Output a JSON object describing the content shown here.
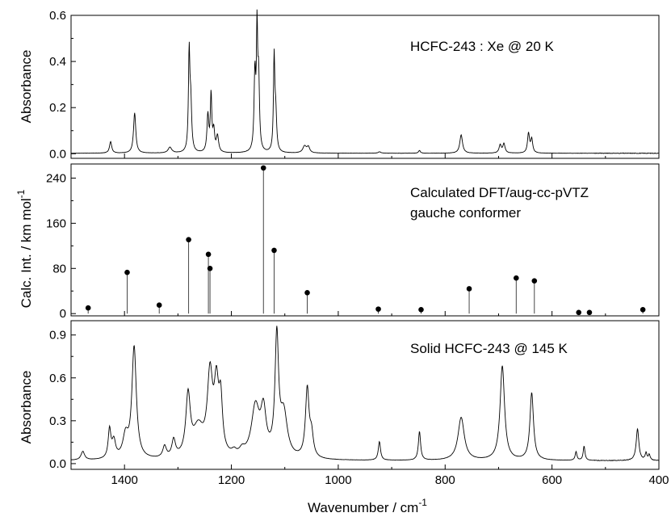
{
  "chart_data": [
    {
      "type": "line",
      "panel": "top",
      "annotation": "HCFC-243 : Xe  @  20 K",
      "ylabel": "Absorbance",
      "ylim": [
        -0.02,
        0.6
      ],
      "yticks": [
        0.0,
        0.2,
        0.4,
        0.6
      ],
      "ytick_labels": [
        "0.0",
        "0.2",
        "0.4",
        "0.6"
      ],
      "xlim": [
        1500,
        400
      ],
      "baseline": 0.002,
      "peaks": [
        {
          "x": 1426,
          "y": 0.05,
          "w": 2.5
        },
        {
          "x": 1381,
          "y": 0.175,
          "w": 2.5
        },
        {
          "x": 1315,
          "y": 0.025,
          "w": 4
        },
        {
          "x": 1279,
          "y": 0.42,
          "w": 1.6
        },
        {
          "x": 1276,
          "y": 0.2,
          "w": 2
        },
        {
          "x": 1244,
          "y": 0.16,
          "w": 2
        },
        {
          "x": 1238,
          "y": 0.245,
          "w": 1.6
        },
        {
          "x": 1233,
          "y": 0.09,
          "w": 2
        },
        {
          "x": 1226,
          "y": 0.07,
          "w": 2.5
        },
        {
          "x": 1156,
          "y": 0.33,
          "w": 1.8
        },
        {
          "x": 1152,
          "y": 0.49,
          "w": 1.4
        },
        {
          "x": 1149,
          "y": 0.3,
          "w": 1.8
        },
        {
          "x": 1120,
          "y": 0.4,
          "w": 1.5
        },
        {
          "x": 1117,
          "y": 0.16,
          "w": 2
        },
        {
          "x": 1063,
          "y": 0.03,
          "w": 4
        },
        {
          "x": 1056,
          "y": 0.025,
          "w": 3
        },
        {
          "x": 923,
          "y": 0.006,
          "w": 3
        },
        {
          "x": 848,
          "y": 0.012,
          "w": 2
        },
        {
          "x": 770,
          "y": 0.08,
          "w": 3
        },
        {
          "x": 697,
          "y": 0.035,
          "w": 2.5
        },
        {
          "x": 690,
          "y": 0.04,
          "w": 2.5
        },
        {
          "x": 644,
          "y": 0.085,
          "w": 2.2
        },
        {
          "x": 638,
          "y": 0.06,
          "w": 2.2
        }
      ]
    },
    {
      "type": "scatter",
      "panel": "middle",
      "annotation": [
        "Calculated DFT/aug-cc-pVTZ",
        "gauche conformer"
      ],
      "ylabel": "Calc. Int.  / km mol",
      "ylabel_sup": "-1",
      "ylim": [
        -4,
        265
      ],
      "yticks": [
        0,
        80,
        160,
        240
      ],
      "ytick_labels": [
        "0",
        "80",
        "160",
        "240"
      ],
      "xlim": [
        1500,
        400
      ],
      "x": [
        1468,
        1395,
        1335,
        1280,
        1243,
        1240,
        1140,
        1120,
        1058,
        925,
        845,
        755,
        667,
        633,
        550,
        530,
        430
      ],
      "y": [
        10,
        73,
        15,
        131,
        105,
        80,
        258,
        112,
        37,
        8,
        7,
        44,
        63,
        58,
        2,
        2,
        7
      ]
    },
    {
      "type": "line",
      "panel": "bottom",
      "annotation": "Solid  HCFC-243  @ 145 K",
      "ylabel": "Absorbance",
      "ylim": [
        -0.04,
        1.0
      ],
      "yticks": [
        0.0,
        0.3,
        0.6,
        0.9
      ],
      "ytick_labels": [
        "0.0",
        "0.3",
        "0.6",
        "0.9"
      ],
      "xlabel": "Wavenumber  /  cm",
      "xlabel_sup": "-1",
      "xlim": [
        1500,
        400
      ],
      "xticks": [
        1400,
        1200,
        1000,
        800,
        600,
        400
      ],
      "xtick_labels": [
        "1400",
        "1200",
        "1000",
        "800",
        "600",
        "400"
      ],
      "baseline": 0.02,
      "peaks": [
        {
          "x": 1478,
          "y": 0.06,
          "w": 4
        },
        {
          "x": 1428,
          "y": 0.2,
          "w": 3
        },
        {
          "x": 1420,
          "y": 0.12,
          "w": 4
        },
        {
          "x": 1398,
          "y": 0.15,
          "w": 6
        },
        {
          "x": 1382,
          "y": 0.78,
          "w": 5
        },
        {
          "x": 1325,
          "y": 0.08,
          "w": 4
        },
        {
          "x": 1308,
          "y": 0.12,
          "w": 4
        },
        {
          "x": 1281,
          "y": 0.42,
          "w": 5
        },
        {
          "x": 1262,
          "y": 0.2,
          "w": 12
        },
        {
          "x": 1240,
          "y": 0.55,
          "w": 6
        },
        {
          "x": 1228,
          "y": 0.45,
          "w": 5
        },
        {
          "x": 1220,
          "y": 0.35,
          "w": 4
        },
        {
          "x": 1195,
          "y": 0.03,
          "w": 5
        },
        {
          "x": 1180,
          "y": 0.04,
          "w": 6
        },
        {
          "x": 1155,
          "y": 0.35,
          "w": 9
        },
        {
          "x": 1140,
          "y": 0.3,
          "w": 6
        },
        {
          "x": 1115,
          "y": 0.82,
          "w": 4
        },
        {
          "x": 1102,
          "y": 0.3,
          "w": 8
        },
        {
          "x": 1058,
          "y": 0.48,
          "w": 4
        },
        {
          "x": 1050,
          "y": 0.15,
          "w": 4
        },
        {
          "x": 923,
          "y": 0.13,
          "w": 2.5
        },
        {
          "x": 848,
          "y": 0.2,
          "w": 2.5
        },
        {
          "x": 770,
          "y": 0.3,
          "w": 7
        },
        {
          "x": 693,
          "y": 0.66,
          "w": 5
        },
        {
          "x": 638,
          "y": 0.47,
          "w": 4
        },
        {
          "x": 555,
          "y": 0.06,
          "w": 2
        },
        {
          "x": 540,
          "y": 0.1,
          "w": 2
        },
        {
          "x": 440,
          "y": 0.22,
          "w": 3
        },
        {
          "x": 424,
          "y": 0.05,
          "w": 2
        },
        {
          "x": 418,
          "y": 0.04,
          "w": 2
        }
      ]
    }
  ]
}
